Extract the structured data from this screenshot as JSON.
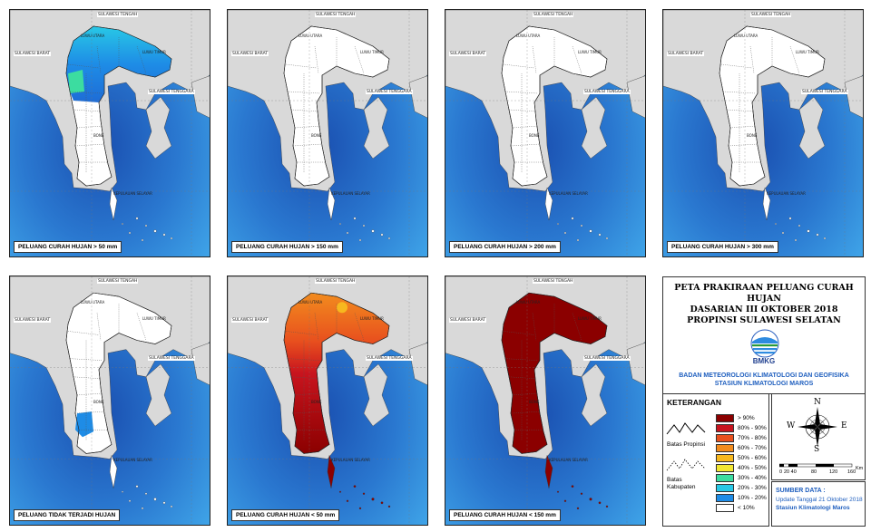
{
  "panels": [
    {
      "caption": "PELUANG CURAH HUJAN > 50 mm",
      "mode": "p50"
    },
    {
      "caption": "PELUANG CURAH HUJAN > 150 mm",
      "mode": "white"
    },
    {
      "caption": "PELUANG CURAH HUJAN > 200 mm",
      "mode": "white"
    },
    {
      "caption": "PELUANG CURAH HUJAN > 300 mm",
      "mode": "white"
    },
    {
      "caption": "PELUANG TIDAK TERJADI HUJAN",
      "mode": "dry"
    },
    {
      "caption": "PELUANG CURAH HUJAN < 50 mm",
      "mode": "lt50"
    },
    {
      "caption": "PELUANG CURAH HUJAN < 150 mm",
      "mode": "lt150"
    }
  ],
  "map_labels": {
    "sulteng": "SULAWESI TENGAH",
    "sulbar": "SULAWESI BARAT",
    "sultra": "SULAWESI TENGGARA",
    "luwu_utara": "LUWU UTARA",
    "luwu_timur": "LUWU TIMUR",
    "bone": "BONE",
    "kepulauan": "KEPULAUAN SELAYAR"
  },
  "title": {
    "line1": "PETA PRAKIRAAN PELUANG CURAH HUJAN",
    "line2": "DASARIAN III  OKTOBER  2018",
    "line3": "PROPINSI SULAWESI SELATAN",
    "logo_text": "BMKG",
    "org1": "BADAN METEOROLOGI KLIMATOLOGI DAN GEOFISIKA",
    "org2": "STASIUN KLIMATOLOGI MAROS"
  },
  "legend": {
    "title": "KETERANGAN",
    "batas_propinsi": "Batas Propinsi",
    "batas_kabupaten_1": "Batas",
    "batas_kabupaten_2": "Kabupaten",
    "classes": [
      {
        "label": "> 90%",
        "color": "#8b0000"
      },
      {
        "label": "80% - 90%",
        "color": "#c8141e"
      },
      {
        "label": "70% - 80%",
        "color": "#e8501e"
      },
      {
        "label": "60% - 70%",
        "color": "#f28c1e"
      },
      {
        "label": "50% - 60%",
        "color": "#f7b81e"
      },
      {
        "label": "40% - 50%",
        "color": "#f2e632"
      },
      {
        "label": "30% - 40%",
        "color": "#3cdca0"
      },
      {
        "label": "20% - 30%",
        "color": "#28c8e6"
      },
      {
        "label": "10% - 20%",
        "color": "#1e8ce6"
      },
      {
        "label": "< 10%",
        "color": "#ffffff"
      }
    ]
  },
  "compass": {
    "n": "N",
    "s": "S",
    "e": "E",
    "w": "W"
  },
  "scale": {
    "labels": [
      "0",
      "20 40",
      "80",
      "120",
      "160"
    ],
    "unit": "Km"
  },
  "source": {
    "title": "SUMBER DATA :",
    "line1": "Update Tanggal 21 Oktober 2018",
    "line2": "Stasiun Klimatologi Maros"
  },
  "colors": {
    "sea_light": "#3fa4e8",
    "sea_mid": "#2a78d0",
    "sea_deep": "#1a4fb0",
    "land_other": "#d9d9d9",
    "land_province": "#ffffff"
  }
}
